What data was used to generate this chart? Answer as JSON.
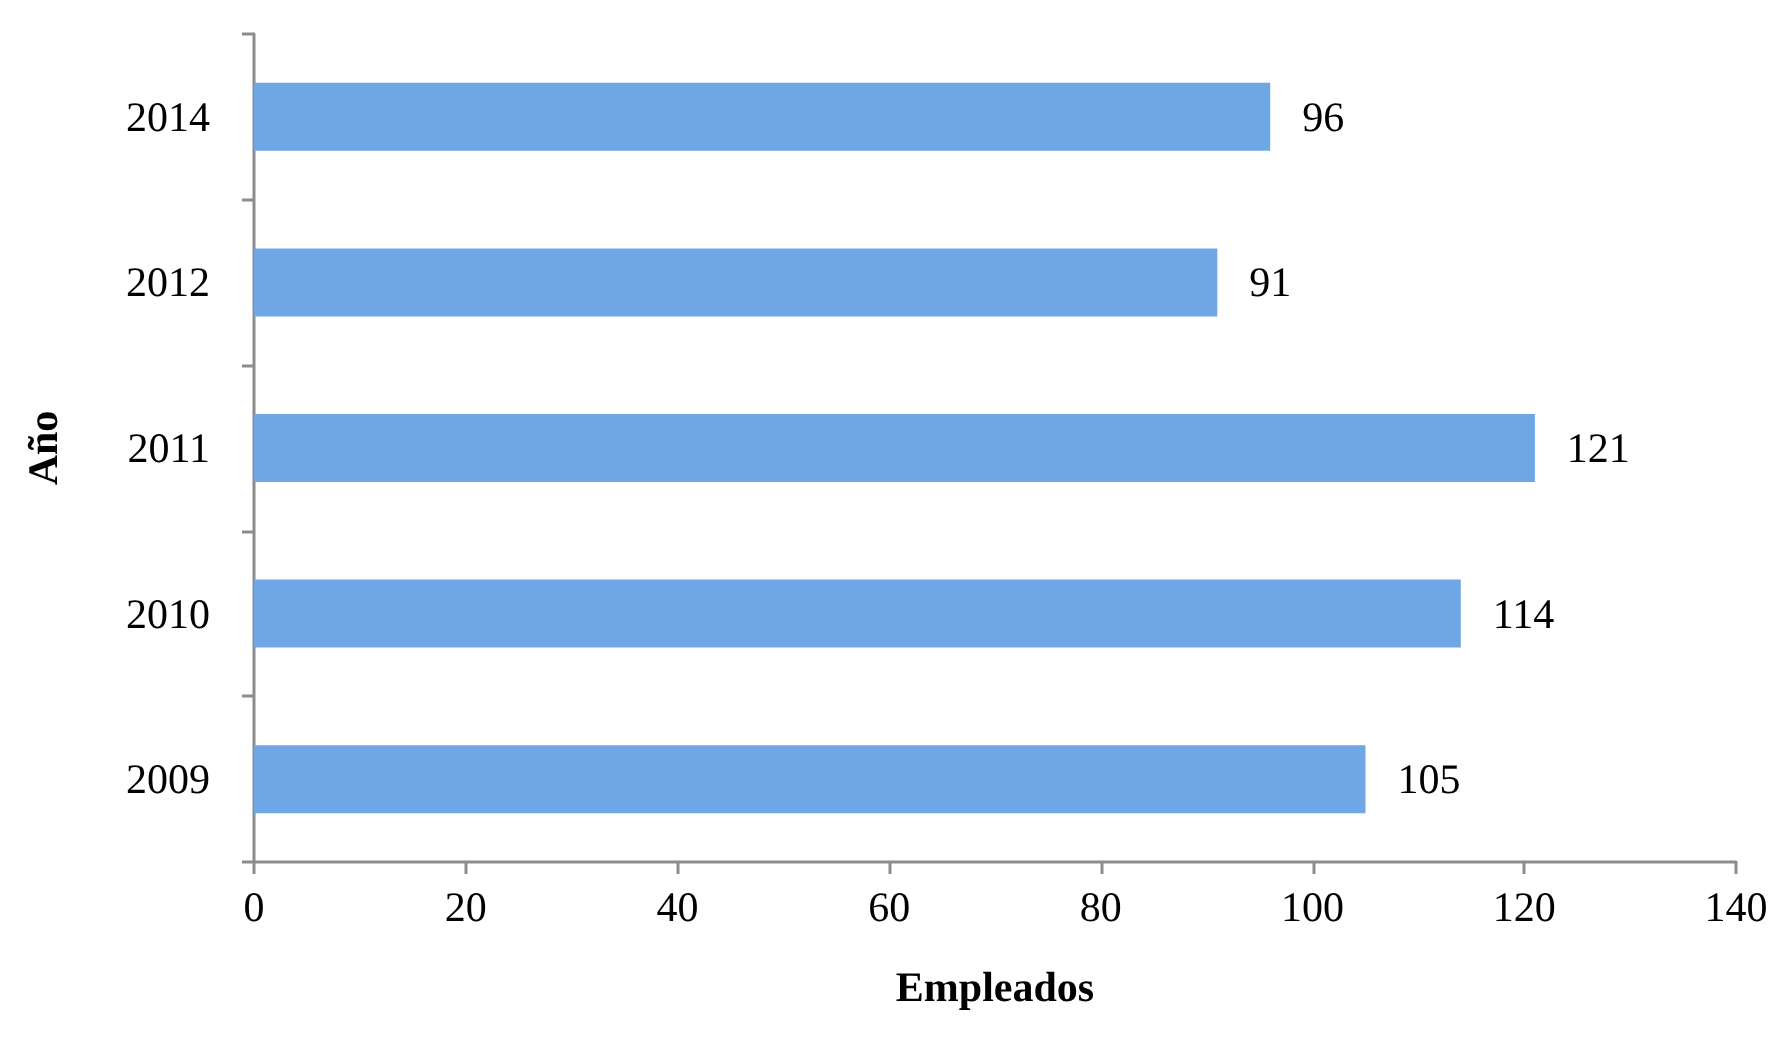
{
  "chart_data": {
    "type": "bar",
    "orientation": "horizontal",
    "xlabel": "Empleados",
    "ylabel": "Año",
    "categories": [
      "2014",
      "2012",
      "2011",
      "2010",
      "2009"
    ],
    "series": [
      {
        "color": "#6ea6e6",
        "values": [
          96,
          91,
          121,
          114,
          105
        ]
      }
    ],
    "xlim": [
      0,
      140
    ],
    "xticks": [
      0,
      20,
      40,
      60,
      80,
      100,
      120,
      140
    ],
    "data_labels": true
  }
}
